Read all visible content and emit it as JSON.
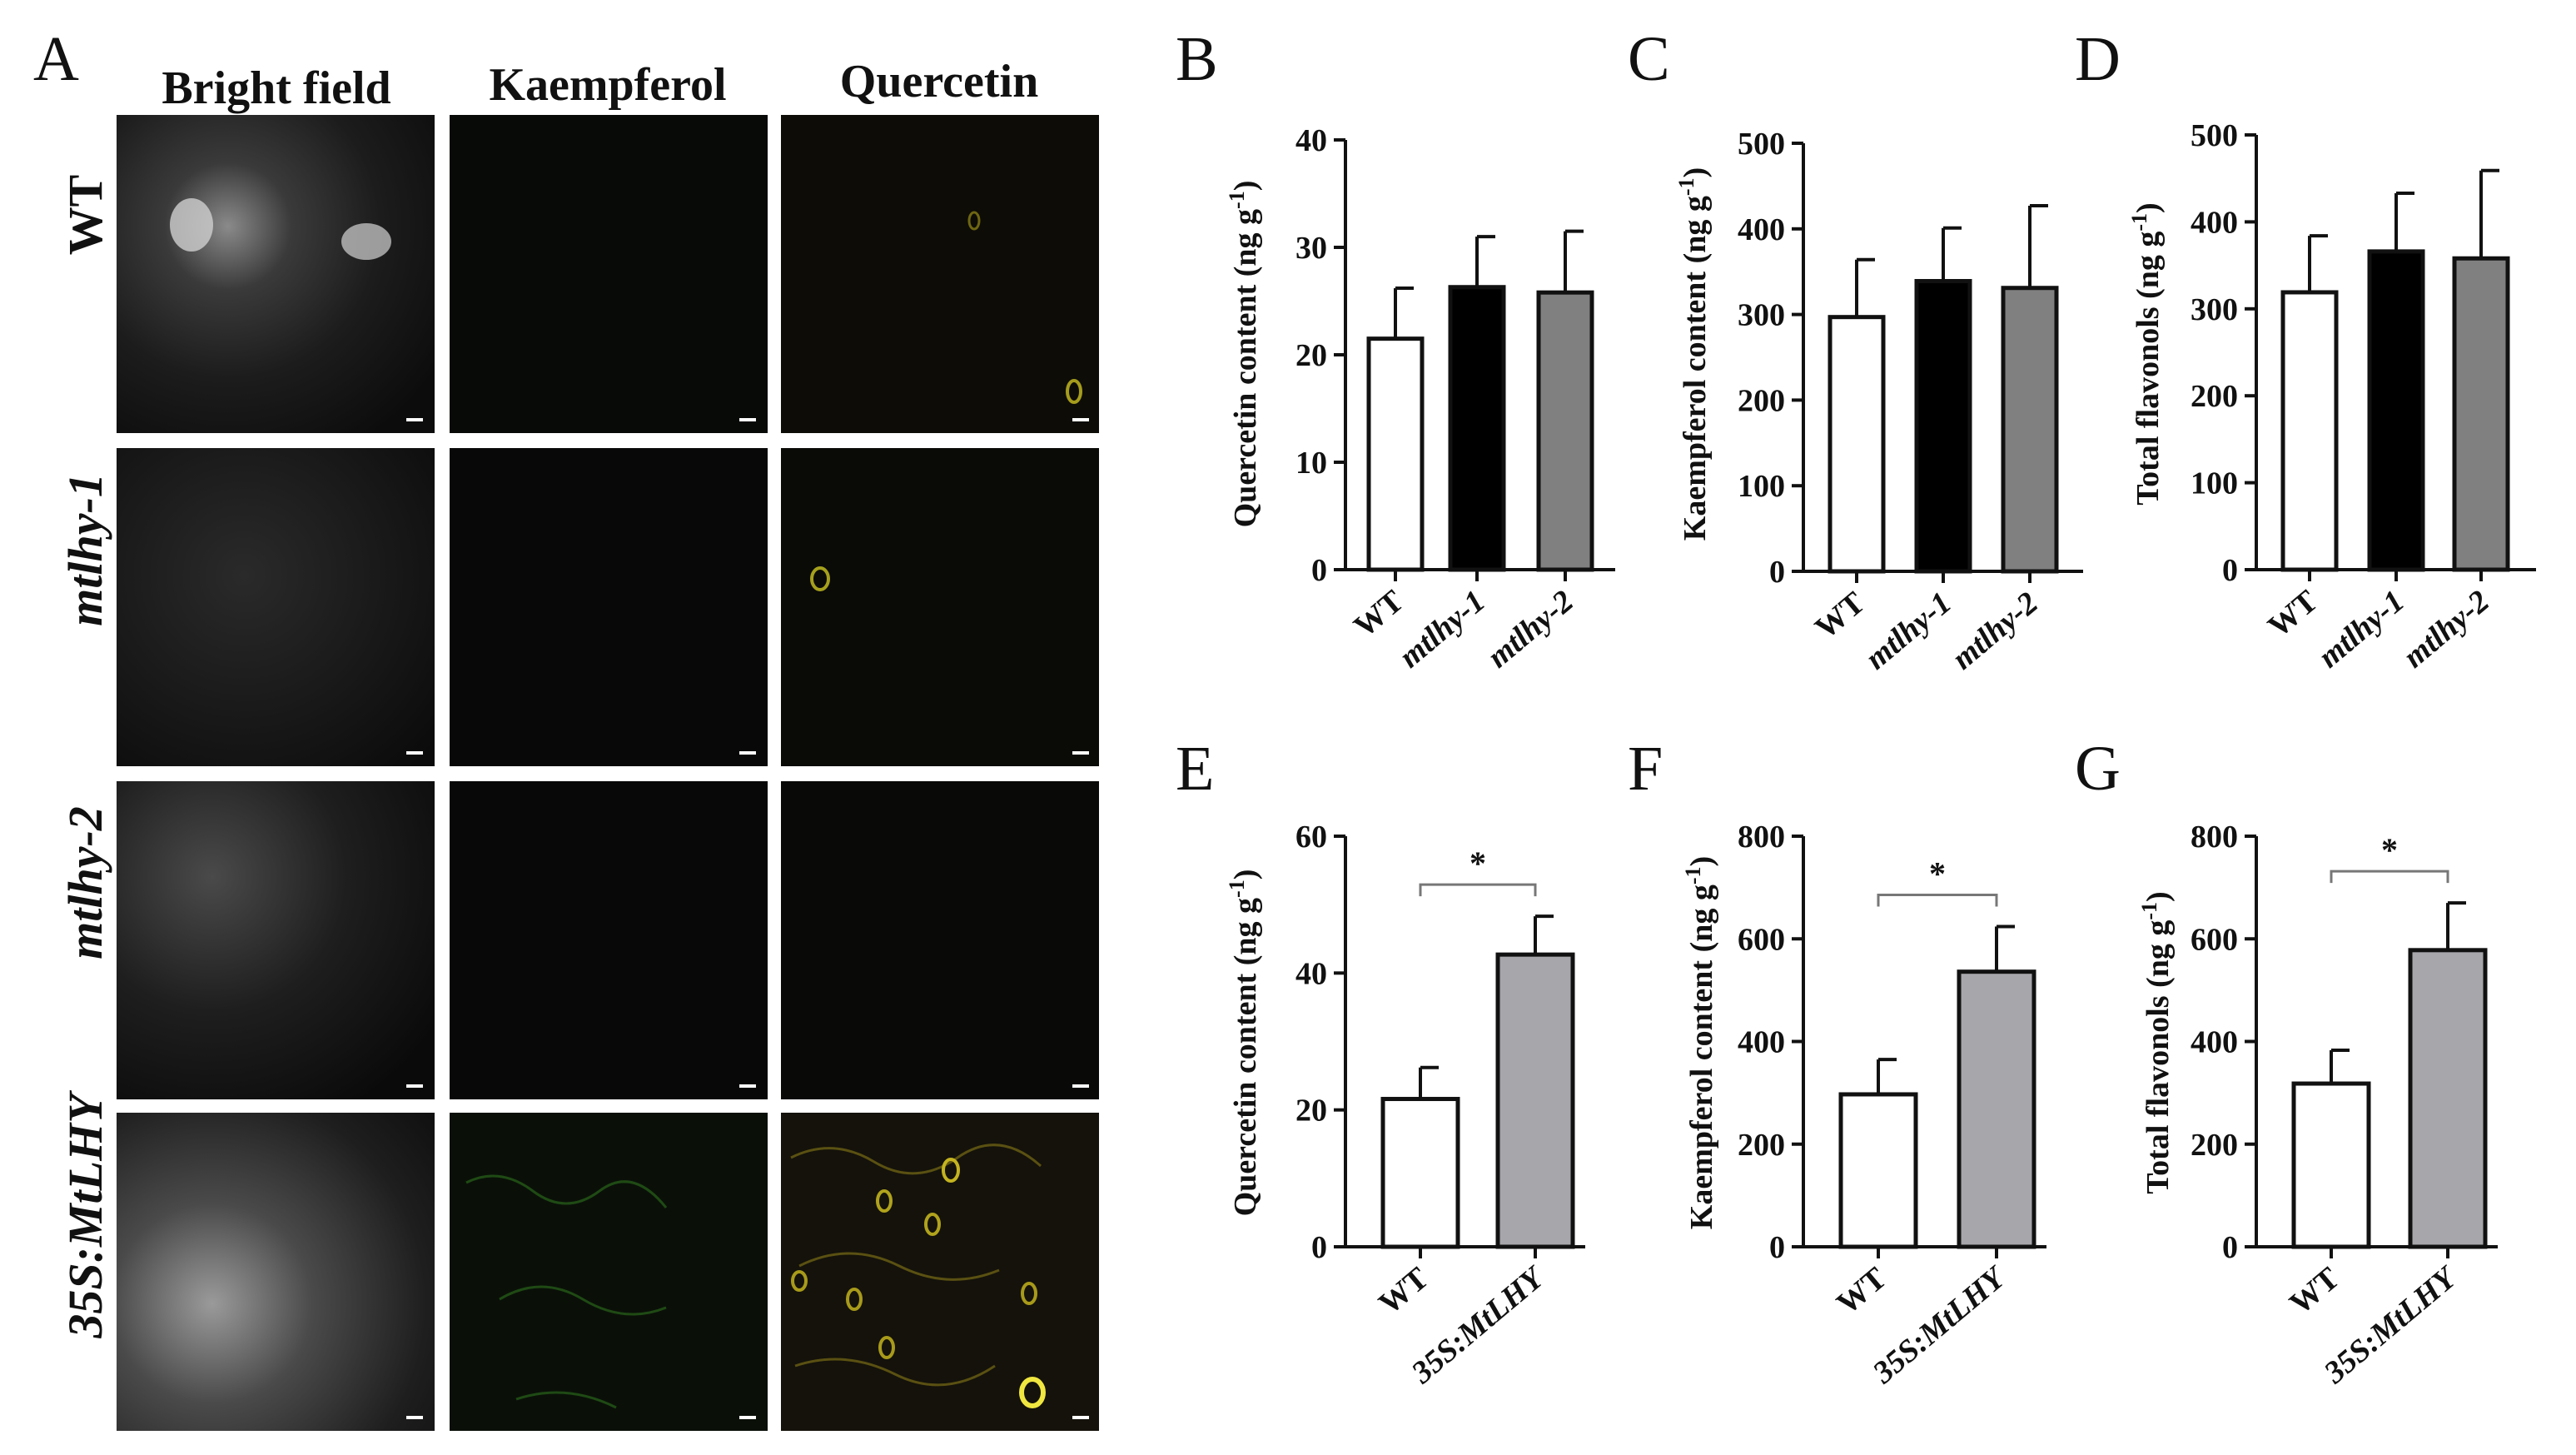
{
  "micrographs": {
    "panel_letter": "A",
    "columns": [
      "Bright field",
      "Kaempferol",
      "Quercetin"
    ],
    "rows": [
      {
        "label": "WT",
        "italic": false
      },
      {
        "label": "mtlhy-1",
        "italic": true
      },
      {
        "label": "mtlhy-2",
        "italic": true
      },
      {
        "label": "35S:MtLHY",
        "italic": true
      }
    ]
  },
  "chart_data": [
    {
      "panel": "B",
      "type": "bar",
      "categories": [
        "WT",
        "mtlhy-1",
        "mtlhy-2"
      ],
      "values": [
        21.5,
        26.3,
        25.8
      ],
      "errors": [
        4.7,
        4.7,
        5.7
      ],
      "colors": [
        "#ffffff",
        "#000000",
        "#808080"
      ],
      "ylabel_main": "Quercetin content",
      "ylabel_unit": "(ng g",
      "ylabel_sup": "-1",
      "ylabel_close": ")",
      "ylim": [
        0,
        40
      ],
      "yticks": [
        0,
        10,
        20,
        30,
        40
      ],
      "significance": []
    },
    {
      "panel": "C",
      "type": "bar",
      "categories": [
        "WT",
        "mtlhy-1",
        "mtlhy-2"
      ],
      "values": [
        297,
        339,
        331
      ],
      "errors": [
        67,
        62,
        96
      ],
      "colors": [
        "#ffffff",
        "#000000",
        "#808080"
      ],
      "ylabel_main": "Kaempferol content",
      "ylabel_unit": "(ng g",
      "ylabel_sup": "-1",
      "ylabel_close": ")",
      "ylim": [
        0,
        500
      ],
      "yticks": [
        0,
        100,
        200,
        300,
        400,
        500
      ],
      "significance": []
    },
    {
      "panel": "D",
      "type": "bar",
      "categories": [
        "WT",
        "mtlhy-1",
        "mtlhy-2"
      ],
      "values": [
        319,
        366,
        358
      ],
      "errors": [
        65,
        67,
        101
      ],
      "colors": [
        "#ffffff",
        "#000000",
        "#808080"
      ],
      "ylabel_main": "Total flavonols",
      "ylabel_unit": "(ng g",
      "ylabel_sup": "-1",
      "ylabel_close": ")",
      "ylim": [
        0,
        500
      ],
      "yticks": [
        0,
        100,
        200,
        300,
        400,
        500
      ],
      "significance": []
    },
    {
      "panel": "E",
      "type": "bar",
      "categories": [
        "WT",
        "35S:MtLHY"
      ],
      "values": [
        21.6,
        42.7
      ],
      "errors": [
        4.6,
        5.6
      ],
      "colors": [
        "#ffffff",
        "#a6a6ab"
      ],
      "ylabel_main": "Quercetin content",
      "ylabel_unit": "(ng g",
      "ylabel_sup": "-1",
      "ylabel_close": ")",
      "ylim": [
        0,
        60
      ],
      "yticks": [
        0,
        20,
        40,
        60
      ],
      "significance": [
        {
          "between": [
            0,
            1
          ],
          "label": "*"
        }
      ]
    },
    {
      "panel": "F",
      "type": "bar",
      "categories": [
        "WT",
        "35S:MtLHY"
      ],
      "values": [
        297,
        536
      ],
      "errors": [
        68,
        88
      ],
      "colors": [
        "#ffffff",
        "#a6a6ab"
      ],
      "ylabel_main": "Kaempferol content",
      "ylabel_unit": "(ng g",
      "ylabel_sup": "-1",
      "ylabel_close": ")",
      "ylim": [
        0,
        800
      ],
      "yticks": [
        0,
        200,
        400,
        600,
        800
      ],
      "significance": [
        {
          "between": [
            0,
            1
          ],
          "label": "*"
        }
      ]
    },
    {
      "panel": "G",
      "type": "bar",
      "categories": [
        "WT",
        "35S:MtLHY"
      ],
      "values": [
        318,
        578
      ],
      "errors": [
        65,
        92
      ],
      "colors": [
        "#ffffff",
        "#a6a6ab"
      ],
      "ylabel_main": "Total flavonols",
      "ylabel_unit": "(ng g",
      "ylabel_sup": "-1",
      "ylabel_close": ")",
      "ylim": [
        0,
        800
      ],
      "yticks": [
        0,
        200,
        400,
        600,
        800
      ],
      "significance": [
        {
          "between": [
            0,
            1
          ],
          "label": "*"
        }
      ]
    }
  ]
}
